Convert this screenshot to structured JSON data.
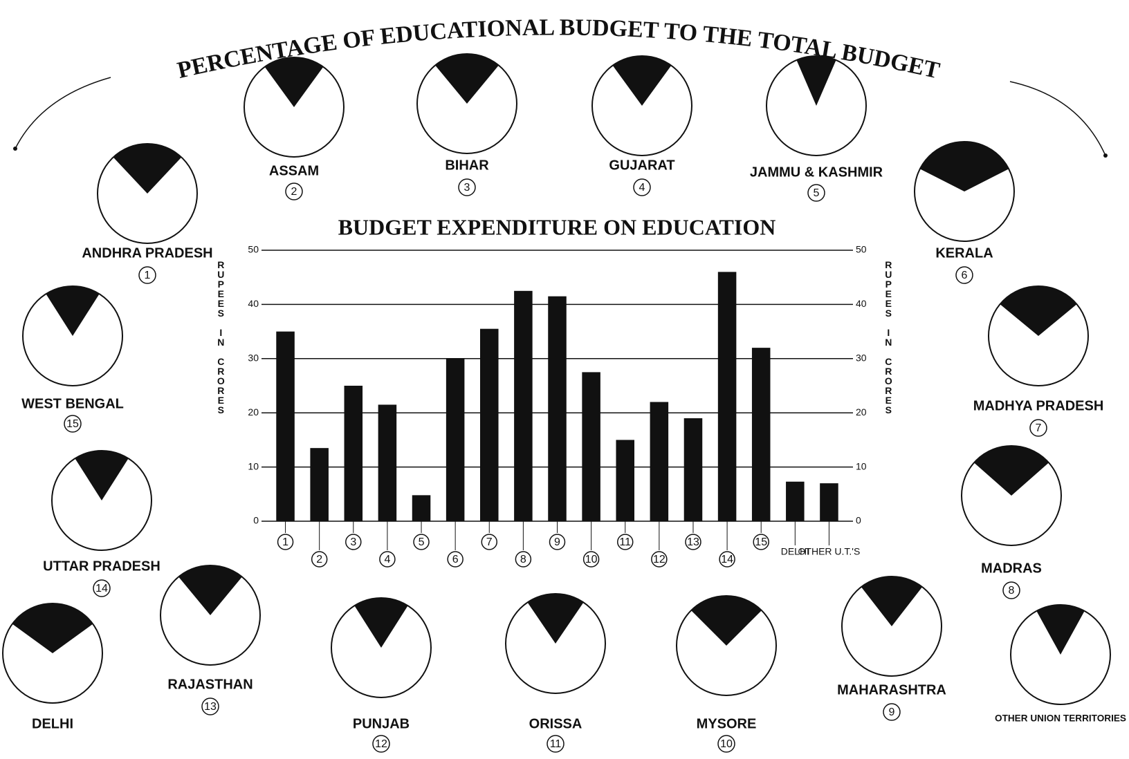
{
  "title": "PERCENTAGE OF EDUCATIONAL BUDGET TO THE TOTAL BUDGET",
  "pies": [
    {
      "label": "ANDHRA PRADESH",
      "number": "1",
      "value": 24
    },
    {
      "label": "ASSAM",
      "number": "2",
      "value": 20
    },
    {
      "label": "BIHAR",
      "number": "3",
      "value": 22
    },
    {
      "label": "GUJARAT",
      "number": "4",
      "value": 20
    },
    {
      "label": "JAMMU & KASHMIR",
      "number": "5",
      "value": 13
    },
    {
      "label": "KERALA",
      "number": "6",
      "value": 35
    },
    {
      "label": "MADHYA PRADESH",
      "number": "7",
      "value": 28
    },
    {
      "label": "MADRAS",
      "number": "8",
      "value": 27
    },
    {
      "label": "MAHARASHTRA",
      "number": "9",
      "value": 21
    },
    {
      "label": "MYSORE",
      "number": "10",
      "value": 25
    },
    {
      "label": "ORISSA",
      "number": "11",
      "value": 19
    },
    {
      "label": "PUNJAB",
      "number": "12",
      "value": 18
    },
    {
      "label": "RAJASTHAN",
      "number": "13",
      "value": 22
    },
    {
      "label": "UTTAR PRADESH",
      "number": "14",
      "value": 18
    },
    {
      "label": "WEST BENGAL",
      "number": "15",
      "value": 18
    },
    {
      "label": "DELHI",
      "value": 30
    },
    {
      "label": "OTHER UNION TERRITORIES",
      "value": 16
    }
  ],
  "chart_data": {
    "type": "bar",
    "title": "BUDGET EXPENDITURE ON EDUCATION",
    "categories": [
      "1",
      "2",
      "3",
      "4",
      "5",
      "6",
      "7",
      "8",
      "9",
      "10",
      "11",
      "12",
      "13",
      "14",
      "15",
      "DELHI",
      "OTHER U.T.'S"
    ],
    "values": [
      35,
      13.5,
      25,
      21.5,
      4.8,
      30,
      35.5,
      42.5,
      41.5,
      27.5,
      15,
      22,
      19,
      46,
      32,
      7.3,
      7
    ],
    "color": "#111111",
    "y_label": "RUPEES IN CRORES",
    "y2_label": "RUPEES IN CRORES",
    "ylim": [
      0,
      50
    ],
    "yticks": [
      0,
      10,
      20,
      30,
      40,
      50
    ],
    "y2lim": [
      0,
      50
    ],
    "y2ticks": [
      0,
      10,
      20,
      30,
      40,
      50
    ],
    "grid": true
  }
}
